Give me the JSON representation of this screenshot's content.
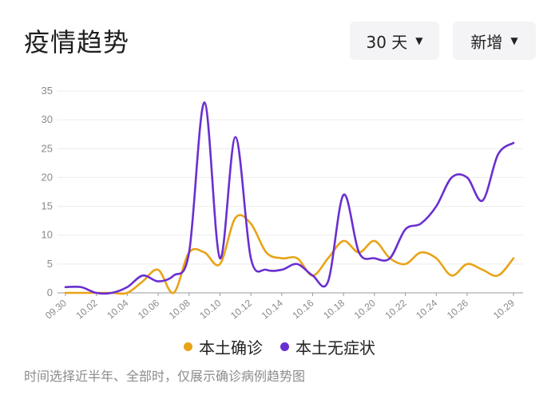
{
  "header": {
    "title": "疫情趋势",
    "range_label": "30 天",
    "type_label": "新增",
    "caret": "▼"
  },
  "legend": {
    "items": [
      {
        "label": "本土确诊",
        "color": "#e8a317"
      },
      {
        "label": "本土无症状",
        "color": "#6a2fd0"
      }
    ]
  },
  "note": "时间选择近半年、全部时，仅展示确诊病例趋势图",
  "chart_data": {
    "type": "line",
    "x": [
      "09.30",
      "10.01",
      "10.02",
      "10.03",
      "10.04",
      "10.05",
      "10.06",
      "10.07",
      "10.08",
      "10.09",
      "10.10",
      "10.11",
      "10.12",
      "10.13",
      "10.14",
      "10.15",
      "10.16",
      "10.17",
      "10.18",
      "10.19",
      "10.20",
      "10.21",
      "10.22",
      "10.23",
      "10.24",
      "10.25",
      "10.26",
      "10.27",
      "10.28",
      "10.29"
    ],
    "x_tick_labels": [
      "09.30",
      "10.02",
      "10.04",
      "10.06",
      "10.08",
      "10.10",
      "10.12",
      "10.14",
      "10.16",
      "10.18",
      "10.20",
      "10.22",
      "10.24",
      "10.26",
      "10.29"
    ],
    "ylim": [
      0,
      35
    ],
    "y_ticks": [
      0,
      5,
      10,
      15,
      20,
      25,
      30,
      35
    ],
    "grid": true,
    "legend_position": "bottom",
    "series": [
      {
        "name": "本土确诊",
        "color": "#e8a317",
        "values": [
          0,
          0,
          0,
          0,
          0,
          2,
          4,
          0,
          7,
          7,
          5,
          13,
          12,
          7,
          6,
          6,
          3,
          6,
          9,
          7,
          9,
          6,
          5,
          7,
          6,
          3,
          5,
          4,
          3,
          6
        ]
      },
      {
        "name": "本土无症状",
        "color": "#6a2fd0",
        "values": [
          1,
          1,
          0,
          0,
          1,
          3,
          2,
          3,
          7,
          33,
          6,
          27,
          6,
          4,
          4,
          5,
          3,
          2,
          17,
          7,
          6,
          6,
          11,
          12,
          15,
          20,
          20,
          16,
          24,
          26
        ]
      }
    ]
  }
}
